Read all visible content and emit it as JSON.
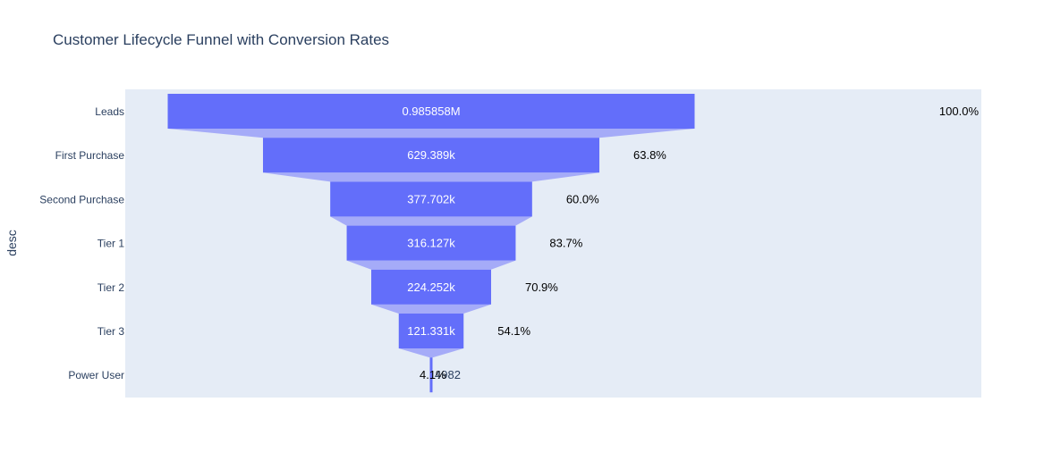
{
  "chart_data": {
    "type": "funnel",
    "title": "Customer Lifecycle Funnel with Conversion Rates",
    "ylabel": "desc",
    "categories": [
      "Leads",
      "First Purchase",
      "Second Purchase",
      "Tier 1",
      "Tier 2",
      "Tier 3",
      "Power User"
    ],
    "values": [
      985858,
      629389,
      377702,
      316127,
      224252,
      121331,
      4982
    ],
    "value_labels": [
      "0.985858M",
      "629.389k",
      "377.702k",
      "316.127k",
      "224.252k",
      "121.331k",
      "4982"
    ],
    "conversion_labels": [
      "100.0%",
      "63.8%",
      "60.0%",
      "83.7%",
      "70.9%",
      "54.1%",
      "4.1%"
    ],
    "colors": {
      "bar": "#636efa",
      "connector": "#a5abf8",
      "plot_bg": "#e5ecf6",
      "axis_text": "#2a3f5f",
      "annotation_text": "#000000"
    }
  }
}
